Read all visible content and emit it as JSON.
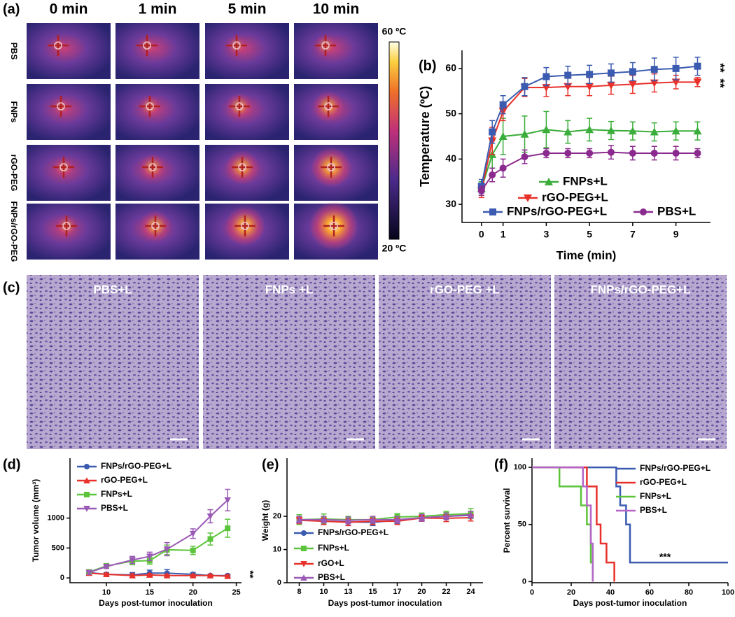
{
  "panel_a": {
    "label": "(a)",
    "columns": [
      "0 min",
      "1 min",
      "5 min",
      "10 min"
    ],
    "rows": [
      "PBS",
      "FNPs",
      "rGO-PEG",
      "FNPs/rGO-PEG"
    ],
    "colorbar": {
      "max": "60 ºC",
      "min": "20 ºC"
    }
  },
  "panel_c": {
    "label": "(c)",
    "titles": [
      "PBS+L",
      "FNPs +L",
      "rGO-PEG +L",
      "FNPs/rGO-PEG+L"
    ]
  },
  "chart_data": [
    {
      "label": "(b)",
      "type": "line",
      "xlabel": "Time (min)",
      "ylabel": "Temperature (ºC)",
      "x": [
        0,
        0.5,
        1,
        2,
        3,
        4,
        5,
        6,
        7,
        8,
        9,
        10
      ],
      "xlim": [
        -0.9,
        10.6
      ],
      "xticks": [
        0,
        1,
        3,
        5,
        7,
        9
      ],
      "ylim": [
        26,
        64
      ],
      "yticks": [
        30,
        40,
        50,
        60
      ],
      "series": [
        {
          "name": "FNPs+L",
          "color": "#3aad3a",
          "marker": "triangle-up",
          "values": [
            33.5,
            41,
            45,
            45.5,
            46.5,
            46,
            46.5,
            46.3,
            46.2,
            46,
            46.2,
            46.2
          ],
          "errors": [
            1.5,
            3,
            4,
            4,
            4,
            2.5,
            2.5,
            2,
            2,
            2,
            2,
            2
          ]
        },
        {
          "name": "rGO-PEG+L",
          "color": "#e8312a",
          "marker": "triangle-down",
          "values": [
            33,
            44,
            50.5,
            55.8,
            55.8,
            56,
            56,
            56.3,
            56.5,
            56.8,
            57,
            57
          ],
          "errors": [
            1.5,
            3,
            2,
            2,
            2,
            2,
            2,
            2,
            2,
            2,
            1.5,
            1
          ]
        },
        {
          "name": "FNPs/rGO-PEG+L",
          "color": "#3a5bb0",
          "marker": "square",
          "values": [
            34,
            46,
            52,
            56,
            58.2,
            58.5,
            58.7,
            59,
            59.3,
            59.8,
            60,
            60.5
          ],
          "errors": [
            1.5,
            2.5,
            2,
            2,
            2,
            2,
            2,
            2,
            2,
            2.5,
            2.5,
            2
          ]
        },
        {
          "name": "PBS+L",
          "color": "#8b2a8e",
          "marker": "circle",
          "values": [
            33,
            36.5,
            38,
            40.5,
            41.3,
            41.3,
            41.3,
            41.5,
            41.3,
            41.3,
            41.3,
            41.3
          ],
          "errors": [
            1,
            1.5,
            2,
            1.5,
            1,
            1,
            1,
            1.5,
            1.5,
            1.5,
            1.5,
            1
          ]
        }
      ],
      "annotations": [
        "**",
        "**"
      ]
    },
    {
      "label": "(d)",
      "type": "line",
      "xlabel": "Days post-tumor inoculation",
      "ylabel": "Tumor volume (mm³)",
      "x": [
        8,
        10,
        13,
        15,
        17,
        20,
        22,
        24
      ],
      "xlim": [
        5.8,
        25.6
      ],
      "xticks": [
        10,
        15,
        20,
        25
      ],
      "ylim": [
        -80,
        2000
      ],
      "yticks": [
        0,
        500,
        1000
      ],
      "series": [
        {
          "name": "FNPs/rGO-PEG+L",
          "color": "#3a5bb0",
          "marker": "circle",
          "values": [
            90,
            60,
            50,
            80,
            80,
            60,
            40,
            40
          ],
          "errors": [
            20,
            30,
            40,
            50,
            60,
            30,
            20,
            20
          ]
        },
        {
          "name": "rGO-PEG+L",
          "color": "#e8312a",
          "marker": "triangle-up",
          "values": [
            80,
            60,
            40,
            50,
            40,
            40,
            40,
            30
          ],
          "errors": [
            20,
            20,
            30,
            20,
            20,
            20,
            20,
            20
          ]
        },
        {
          "name": "FNPs+L",
          "color": "#5cc43a",
          "marker": "square",
          "values": [
            100,
            200,
            280,
            290,
            470,
            460,
            650,
            830
          ],
          "errors": [
            30,
            40,
            60,
            60,
            80,
            70,
            100,
            150
          ]
        },
        {
          "name": "PBS+L",
          "color": "#9b59b6",
          "marker": "triangle-down",
          "values": [
            90,
            190,
            300,
            360,
            480,
            740,
            1030,
            1300
          ],
          "errors": [
            30,
            30,
            60,
            70,
            110,
            80,
            110,
            180
          ]
        }
      ],
      "annotations": [
        "**"
      ]
    },
    {
      "label": "(e)",
      "type": "line",
      "xlabel": "Days post-tumor inoculation",
      "ylabel": "Weight (g)",
      "categories": [
        "8",
        "10",
        "13",
        "15",
        "17",
        "20",
        "22",
        "24"
      ],
      "ylim": [
        0,
        37.5
      ],
      "yticks": [
        0,
        10,
        20
      ],
      "series": [
        {
          "name": "FNPs/rGO-PEG+L",
          "color": "#3a5bb0",
          "marker": "circle",
          "values": [
            19,
            18.5,
            18.3,
            18.2,
            18.8,
            19.5,
            20,
            20.3
          ],
          "errors": [
            1,
            1,
            1,
            1,
            1,
            1,
            1,
            1
          ]
        },
        {
          "name": "FNPs+L",
          "color": "#5cc43a",
          "marker": "square",
          "values": [
            19,
            19.2,
            19,
            19,
            19.8,
            20,
            20.5,
            20.8
          ],
          "errors": [
            1.5,
            1.5,
            1,
            1,
            1,
            1,
            1,
            1.5
          ]
        },
        {
          "name": "rGO+L",
          "color": "#e8312a",
          "marker": "triangle-down",
          "values": [
            18.8,
            18.5,
            18.2,
            18.5,
            18.5,
            19.5,
            19.4,
            19.6
          ],
          "errors": [
            1,
            1,
            1,
            1,
            1,
            1,
            1,
            1
          ]
        },
        {
          "name": "PBS+L",
          "color": "#9b59b6",
          "marker": "triangle-up",
          "values": [
            19,
            19,
            18.8,
            19,
            19,
            19.6,
            20,
            20.5
          ],
          "errors": [
            1,
            1,
            1,
            1,
            1,
            1,
            1,
            1
          ]
        }
      ]
    },
    {
      "label": "(f)",
      "type": "step",
      "xlabel": "Days post-tumor inoculation",
      "ylabel": "Percent survival",
      "xlim": [
        0,
        100
      ],
      "xticks": [
        0,
        20,
        40,
        60,
        80,
        100
      ],
      "ylim": [
        -1,
        108
      ],
      "yticks": [
        0,
        50,
        100
      ],
      "series": [
        {
          "name": "FNPs/rGO-PEG+L",
          "color": "#3a5bb0",
          "x": [
            0,
            43,
            45,
            48,
            50,
            100
          ],
          "values": [
            100,
            83.3,
            66.7,
            50,
            16.7,
            16.7
          ]
        },
        {
          "name": "rGO-PEG+L",
          "color": "#e8312a",
          "x": [
            0,
            28,
            33,
            35,
            38,
            42
          ],
          "values": [
            100,
            83.3,
            50,
            33.3,
            16.7,
            0
          ]
        },
        {
          "name": "FNPs+L",
          "color": "#5cc43a",
          "x": [
            0,
            14,
            25,
            28,
            30,
            31
          ],
          "values": [
            100,
            83.3,
            66.7,
            50,
            16.7,
            0
          ]
        },
        {
          "name": "PBS+L",
          "color": "#b565c8",
          "x": [
            0,
            26,
            28,
            30,
            31
          ],
          "values": [
            100,
            83.3,
            66.7,
            33.3,
            0
          ]
        }
      ],
      "annotations": [
        "***"
      ]
    }
  ]
}
